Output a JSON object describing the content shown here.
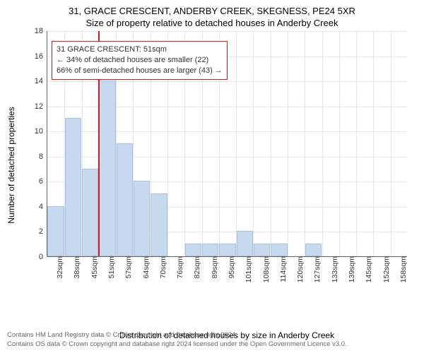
{
  "title_line1": "31, GRACE CRESCENT, ANDERBY CREEK, SKEGNESS, PE24 5XR",
  "title_line2": "Size of property relative to detached houses in Anderby Creek",
  "ylabel": "Number of detached properties",
  "xlabel": "Distribution of detached houses by size in Anderby Creek",
  "footnote_line1": "Contains HM Land Registry data © Crown copyright and database right 2024.",
  "footnote_line2": "Contains OS data © Crown copyright and database right 2024 licensed under the Open Government Licence v3.0.",
  "annotation": {
    "line1": "31 GRACE CRESCENT: 51sqm",
    "line2": "← 34% of detached houses are smaller (22)",
    "line3": "66% of semi-detached houses are larger (43) →"
  },
  "chart": {
    "type": "histogram",
    "ylim": [
      0,
      18
    ],
    "ytick_step": 2,
    "bar_color": "#c7d9ee",
    "bar_border_color": "#a9c0de",
    "grid_color": "#e5e5e5",
    "ref_line_color": "#d11a1a",
    "ref_line_x": 51,
    "annotation_border_color": "#d11a1a",
    "background_color": "#ffffff",
    "title_fontsize": 13,
    "label_fontsize": 12,
    "tick_fontsize": 11,
    "x_categories": [
      "32sqm",
      "38sqm",
      "45sqm",
      "51sqm",
      "57sqm",
      "64sqm",
      "70sqm",
      "76sqm",
      "82sqm",
      "89sqm",
      "95sqm",
      "101sqm",
      "108sqm",
      "114sqm",
      "120sqm",
      "127sqm",
      "133sqm",
      "139sqm",
      "145sqm",
      "152sqm",
      "158sqm"
    ],
    "values": [
      4,
      11,
      7,
      14,
      9,
      6,
      5,
      0,
      1,
      1,
      1,
      2,
      1,
      1,
      0,
      1,
      0,
      0,
      0,
      0,
      0
    ]
  }
}
